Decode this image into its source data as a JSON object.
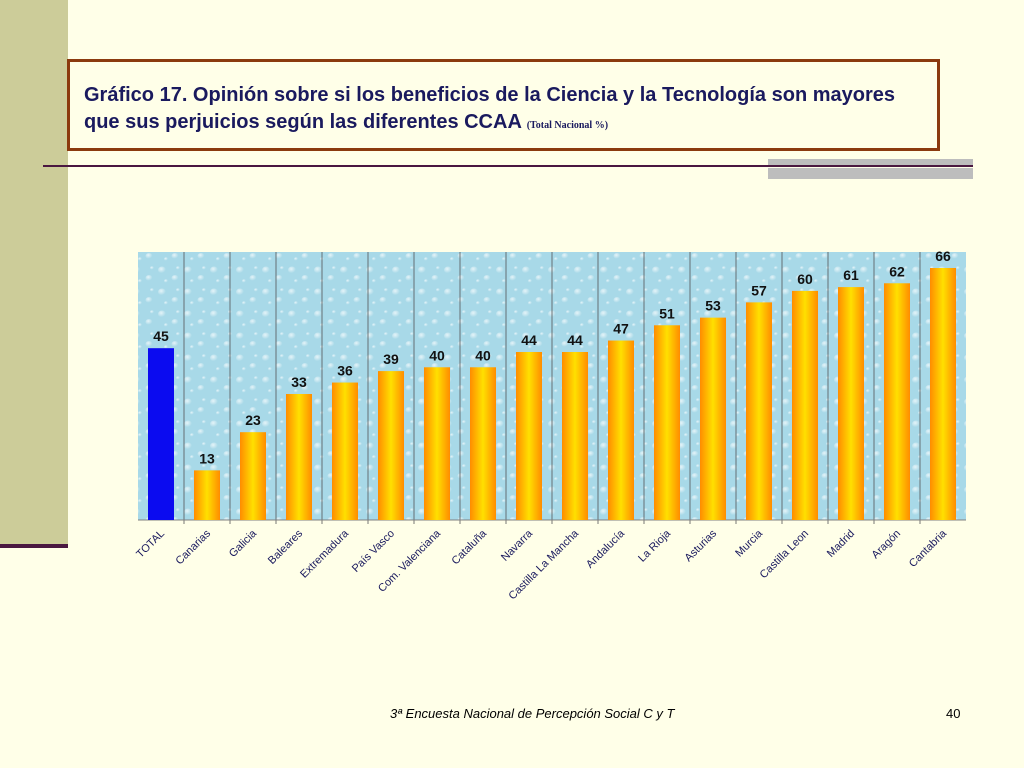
{
  "slide": {
    "title": "Gráfico 17. Opinión sobre si los beneficios de la Ciencia y la Tecnología son mayores que sus perjuicios según las diferentes CCAA",
    "title_note": "(Total Nacional %)",
    "footer": "3ª Encuesta Nacional de Percepción Social C y T",
    "page_number": "40"
  },
  "colors": {
    "total_bar": "#0b0bf0",
    "region_bar": "#ff9a00",
    "region_bar_highlight": "#ffe000",
    "plot_background": "#a8d9e8",
    "title_text": "#1a1a5e",
    "frame": "#8b3a0e"
  },
  "chart_data": {
    "type": "bar",
    "title": "",
    "xlabel": "",
    "ylabel": "",
    "ylim": [
      0,
      66
    ],
    "grid": "vertical lines between categories",
    "legend": "none",
    "categories": [
      "TOTAL",
      "Canarias",
      "Galicia",
      "Baleares",
      "Extremadura",
      "País Vasco",
      "Com. Valenciana",
      "Cataluña",
      "Navarra",
      "Castilla La Mancha",
      "Andalucía",
      "La Rioja",
      "Asturias",
      "Murcia",
      "Castilla Leon",
      "Madrid",
      "Aragón",
      "Cantabria"
    ],
    "values": [
      45,
      13,
      23,
      33,
      36,
      39,
      40,
      40,
      44,
      44,
      47,
      51,
      53,
      57,
      60,
      61,
      62,
      66
    ]
  }
}
